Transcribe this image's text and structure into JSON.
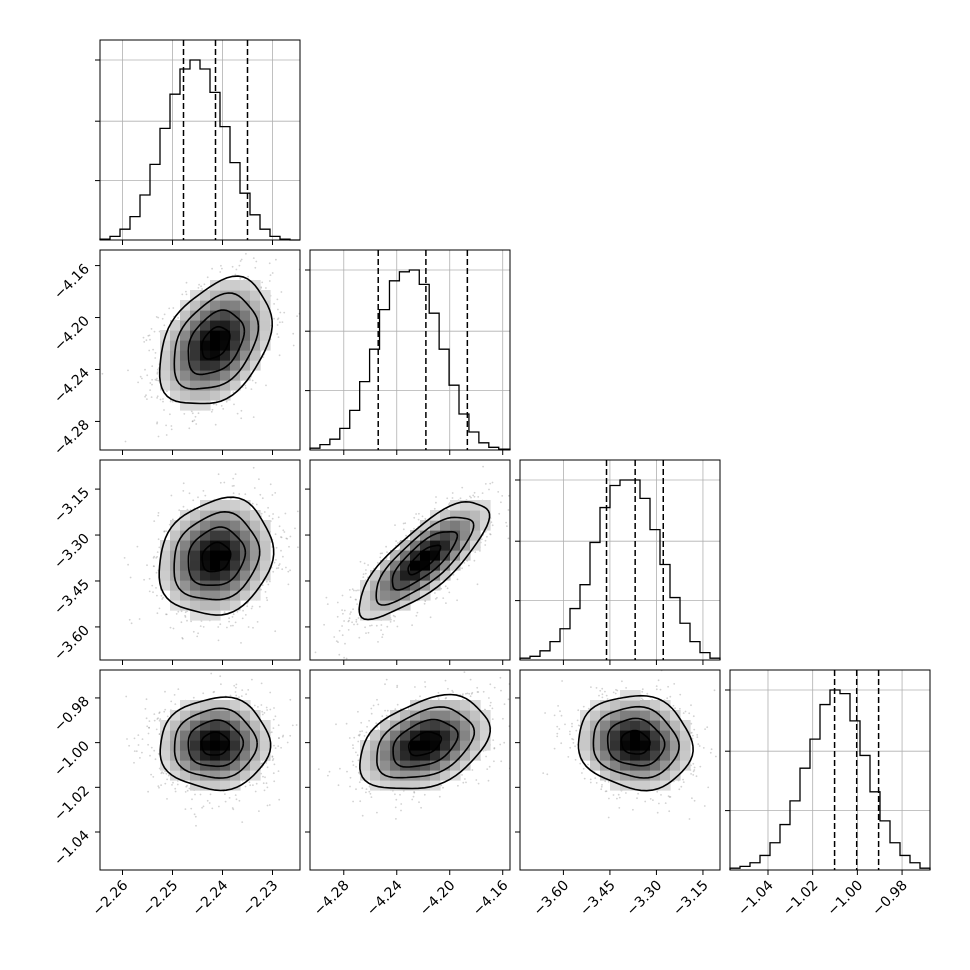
{
  "chart_data": {
    "type": "corner",
    "grid": true,
    "parameters": [
      {
        "xticks": [
          -2.26,
          -2.25,
          -2.24,
          -2.23
        ],
        "xtick_labels": [
          "−2.26",
          "−2.25",
          "−2.24",
          "−2.23"
        ],
        "range": [
          -2.2645,
          -2.2245
        ],
        "quantiles": [
          -2.2478,
          -2.2414,
          -2.235
        ],
        "histogram": {
          "bin_edges": [
            -2.2645,
            -2.2625,
            -2.2605,
            -2.2585,
            -2.2565,
            -2.2545,
            -2.2525,
            -2.2505,
            -2.2485,
            -2.2465,
            -2.2445,
            -2.2425,
            -2.2405,
            -2.2385,
            -2.2365,
            -2.2345,
            -2.2325,
            -2.2305,
            -2.2285,
            -2.2265,
            -2.2245
          ],
          "heights": [
            0.005,
            0.02,
            0.06,
            0.13,
            0.25,
            0.42,
            0.62,
            0.81,
            0.95,
            1.0,
            0.95,
            0.82,
            0.63,
            0.43,
            0.26,
            0.14,
            0.06,
            0.02,
            0.005,
            0.0
          ]
        },
        "yticks_fraction": [
          0.33,
          0.66,
          1.0
        ]
      },
      {
        "yticks": [
          -4.16,
          -4.2,
          -4.24,
          -4.28
        ],
        "ytick_labels": [
          "−4.16",
          "−4.20",
          "−4.24",
          "−4.28"
        ],
        "xticks": [
          -4.28,
          -4.24,
          -4.2,
          -4.16
        ],
        "xtick_labels": [
          "−4.28",
          "−4.24",
          "−4.20",
          "−4.16"
        ],
        "range": [
          -4.3055,
          -4.1545
        ],
        "quantiles": [
          -4.254,
          -4.218,
          -4.1867
        ],
        "histogram": {
          "bin_edges": [
            -4.3055,
            -4.298,
            -4.2905,
            -4.283,
            -4.2755,
            -4.268,
            -4.2605,
            -4.253,
            -4.2455,
            -4.238,
            -4.2305,
            -4.223,
            -4.2155,
            -4.208,
            -4.2005,
            -4.193,
            -4.1855,
            -4.178,
            -4.1705,
            -4.163,
            -4.1545
          ],
          "heights": [
            0.01,
            0.03,
            0.06,
            0.12,
            0.22,
            0.38,
            0.56,
            0.78,
            0.94,
            0.99,
            1.0,
            0.92,
            0.76,
            0.56,
            0.36,
            0.2,
            0.1,
            0.04,
            0.015,
            0.005
          ]
        },
        "yticks_fraction": [
          0.33,
          0.66,
          1.0
        ]
      },
      {
        "yticks": [
          -3.15,
          -3.3,
          -3.45,
          -3.6
        ],
        "ytick_labels": [
          "−3.15",
          "−3.30",
          "−3.45",
          "−3.60"
        ],
        "xticks": [
          -3.6,
          -3.45,
          -3.3,
          -3.15
        ],
        "xtick_labels": [
          "−3.60",
          "−3.45",
          "−3.30",
          "−3.15"
        ],
        "range": [
          -3.74,
          -3.095
        ],
        "quantiles": [
          -3.461,
          -3.3686,
          -3.278
        ],
        "histogram": {
          "bin_edges": [
            -3.74,
            -3.70775,
            -3.6755,
            -3.64325,
            -3.611,
            -3.57875,
            -3.5465,
            -3.51425,
            -3.482,
            -3.44975,
            -3.4175,
            -3.38525,
            -3.353,
            -3.32075,
            -3.2885,
            -3.25625,
            -3.224,
            -3.19175,
            -3.1595,
            -3.12725,
            -3.095
          ],
          "heights": [
            0.01,
            0.02,
            0.05,
            0.1,
            0.17,
            0.28,
            0.41,
            0.64,
            0.83,
            0.95,
            0.98,
            0.98,
            0.88,
            0.71,
            0.52,
            0.34,
            0.2,
            0.1,
            0.04,
            0.01
          ]
        },
        "yticks_fraction": [
          0.33,
          0.66,
          1.0
        ]
      },
      {
        "yticks": [
          -0.98,
          -1.0,
          -1.02,
          -1.04
        ],
        "ytick_labels": [
          "−0.98",
          "−1.00",
          "−1.02",
          "−1.04"
        ],
        "xticks": [
          -1.04,
          -1.02,
          -1.0,
          -0.98
        ],
        "xtick_labels": [
          "−1.04",
          "−1.02",
          "−1.00",
          "−0.98"
        ],
        "range": [
          -1.057,
          -0.9675
        ],
        "quantiles": [
          -1.0102,
          -1.0003,
          -0.9905
        ],
        "histogram": {
          "bin_edges": [
            -1.057,
            -1.052525,
            -1.04805,
            -1.043575,
            -1.0391,
            -1.034625,
            -1.03015,
            -1.025675,
            -1.0212,
            -1.016725,
            -1.01225,
            -1.007775,
            -1.0033,
            -0.998825,
            -0.99435,
            -0.989875,
            -0.9854,
            -0.980925,
            -0.97645,
            -0.971975,
            -0.9675
          ],
          "heights": [
            0.01,
            0.02,
            0.04,
            0.08,
            0.15,
            0.25,
            0.38,
            0.56,
            0.72,
            0.91,
            0.99,
            0.97,
            0.82,
            0.63,
            0.43,
            0.27,
            0.15,
            0.08,
            0.04,
            0.01
          ]
        },
        "yticks_fraction": [
          0.33,
          0.66,
          1.0
        ]
      }
    ],
    "ranges_2d": {
      "1": [
        -4.302,
        -4.148
      ],
      "2": [
        -3.708,
        -3.055
      ],
      "3": [
        -1.057,
        -0.9675
      ]
    },
    "joint_pairs": [
      {
        "row": 1,
        "col": 0,
        "mean": [
          -2.2414,
          -4.2195
        ],
        "sd": [
          0.0056,
          0.0245
        ],
        "rho": 0.35
      },
      {
        "row": 2,
        "col": 0,
        "mean": [
          -2.2413,
          -3.373
        ],
        "sd": [
          0.0057,
          0.095
        ],
        "rho": 0.15
      },
      {
        "row": 2,
        "col": 1,
        "mean": [
          -4.2195,
          -3.38
        ],
        "sd": [
          0.0245,
          0.095
        ],
        "rho": 0.78
      },
      {
        "row": 3,
        "col": 0,
        "mean": [
          -2.2415,
          -1.0006
        ],
        "sd": [
          0.0055,
          0.0103
        ],
        "rho": 0.03
      },
      {
        "row": 3,
        "col": 1,
        "mean": [
          -4.219,
          -1.0005
        ],
        "sd": [
          0.0245,
          0.0105
        ],
        "rho": 0.35
      },
      {
        "row": 3,
        "col": 2,
        "mean": [
          -3.368,
          -1.0
        ],
        "sd": [
          0.092,
          0.0105
        ],
        "rho": -0.08
      }
    ],
    "density_levels_sigma": [
      0.5,
      1.0,
      1.5,
      2.0
    ],
    "colors": {
      "line": "#000000",
      "grid": "#b0b0b0",
      "points": "#7f7f7f",
      "background": "#ffffff"
    }
  }
}
